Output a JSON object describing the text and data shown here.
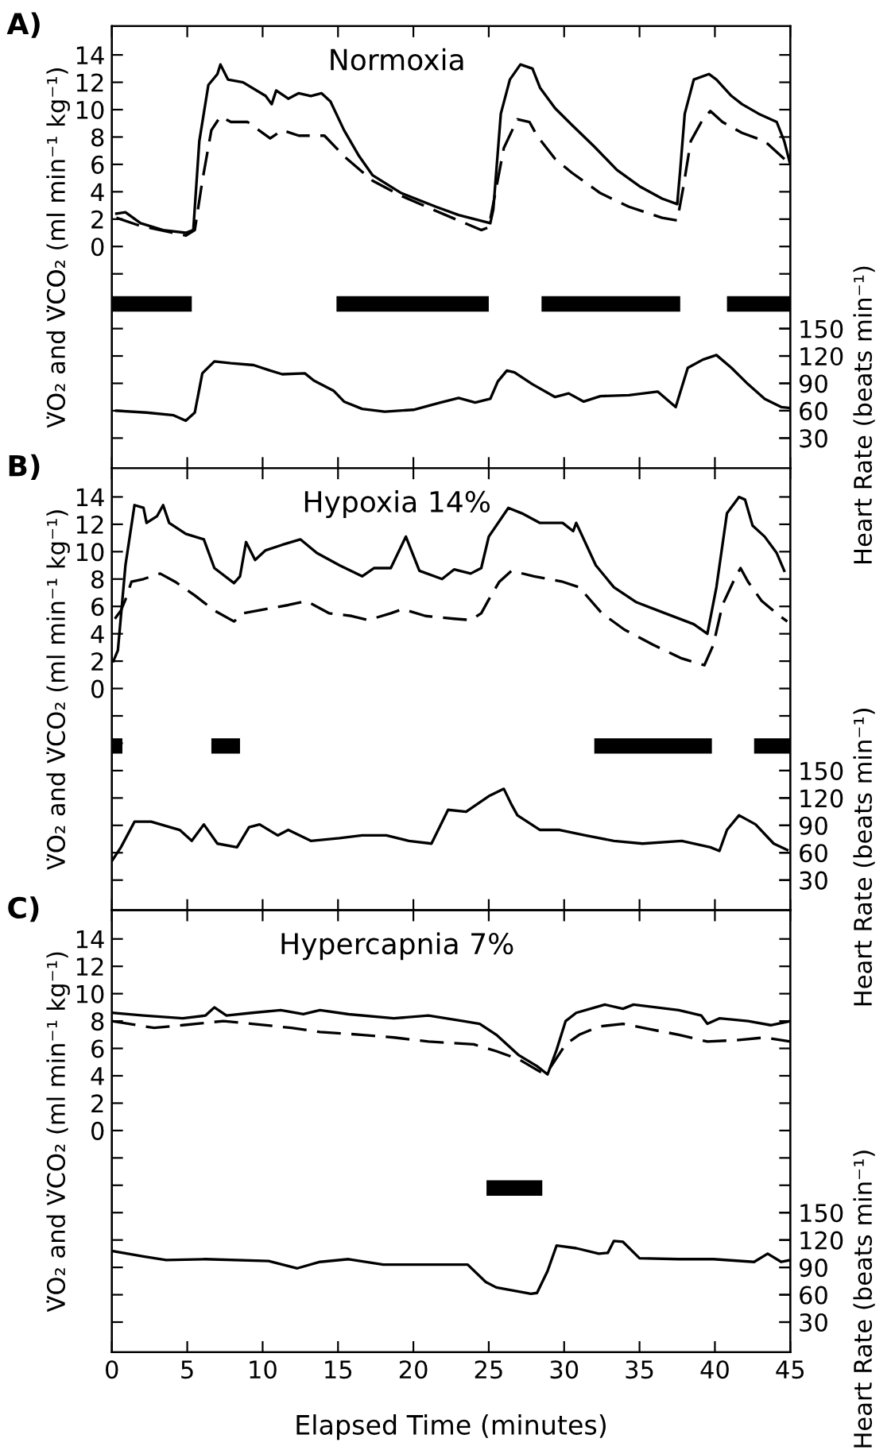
{
  "chart_data": [
    {
      "type": "line",
      "title": "Normoxia",
      "annotations": [
        "A)"
      ],
      "ylabel": "V̇O₂ and V̇CO₂ (ml min⁻¹ kg⁻¹)",
      "y2label": "Heart Rate (beats min⁻¹)",
      "tick_labels": "y",
      "xlim": [
        0,
        45
      ],
      "xticks": [
        0,
        5,
        10,
        15,
        20,
        25,
        30,
        35,
        40,
        45
      ],
      "ylim": [
        -16.2,
        16.1
      ],
      "yticks": [
        {
          "value": -14,
          "label": null
        },
        {
          "value": -12,
          "label": null
        },
        {
          "value": -10,
          "label": null
        },
        {
          "value": -8,
          "label": null
        },
        {
          "value": -6,
          "label": null
        },
        {
          "value": -4,
          "label": null
        },
        {
          "value": -2,
          "label": null
        },
        0,
        2,
        4,
        6,
        8,
        10,
        12,
        14
      ],
      "y2lim": [
        -3,
        481.5
      ],
      "y2ticks": [
        30,
        60,
        90,
        120,
        150
      ],
      "series": [
        {
          "type": "step",
          "color": "#000000",
          "line_style": "solid",
          "x": [
            0,
            5.3,
            null,
            14.9,
            25.0,
            null,
            28.5,
            37.7,
            null,
            40.8,
            45
          ],
          "values": [
            -4.2,
            -4.2,
            null,
            -4.2,
            -4.2,
            null,
            -4.2,
            -4.2,
            null,
            -4.2,
            -4.2
          ]
        },
        {
          "color": "#000000",
          "line_style": "solid",
          "x": [
            0.3,
            0.9,
            1.9,
            3.4,
            4.9,
            5.4,
            5.8,
            6.4,
            7.0,
            7.2,
            7.7,
            8.7,
            10.2,
            10.6,
            10.9,
            11.7,
            12.4,
            13.2,
            13.9,
            14.5,
            15.4,
            16.4,
            17.3,
            19.2,
            21.5,
            23.0,
            25.1,
            25.3,
            25.8,
            26.4,
            27.1,
            27.9,
            28.4,
            29.4,
            30.5,
            32.0,
            33.5,
            35.0,
            36.5,
            37.5,
            37.7,
            38.0,
            38.6,
            39.6,
            40.1,
            41.1,
            41.8,
            42.9,
            44.1,
            44.6,
            45
          ],
          "values": [
            2.4,
            2.5,
            1.7,
            1.2,
            1.0,
            1.2,
            7.7,
            11.8,
            12.6,
            13.3,
            12.2,
            12.0,
            11.0,
            10.4,
            11.4,
            10.8,
            11.2,
            11.0,
            11.2,
            10.6,
            8.5,
            6.6,
            5.2,
            3.9,
            2.9,
            2.3,
            1.7,
            2.7,
            9.7,
            12.2,
            13.3,
            13.0,
            11.6,
            10.1,
            8.9,
            7.3,
            5.6,
            4.4,
            3.5,
            3.1,
            5.6,
            9.7,
            12.2,
            12.6,
            12.2,
            11.0,
            10.4,
            9.7,
            9.1,
            7.7,
            6.0
          ]
        },
        {
          "color": "#000000",
          "line_style": "dashed",
          "x": [
            0.3,
            1.9,
            4.9,
            5.5,
            6.0,
            6.6,
            7.2,
            7.9,
            9.0,
            10.5,
            11.3,
            12.4,
            14.1,
            15.4,
            17.3,
            19.2,
            21.5,
            24.5,
            25.0,
            26.0,
            26.9,
            27.7,
            28.2,
            29.4,
            30.5,
            32.4,
            34.3,
            36.5,
            37.5,
            37.9,
            38.4,
            39.2,
            39.7,
            40.5,
            41.8,
            43.3,
            45
          ],
          "values": [
            2.1,
            1.5,
            0.8,
            1.2,
            4.8,
            8.5,
            9.5,
            9.1,
            9.1,
            7.9,
            8.5,
            8.1,
            8.1,
            6.6,
            4.8,
            3.7,
            2.6,
            1.2,
            1.4,
            7.2,
            9.3,
            9.1,
            8.1,
            6.4,
            5.4,
            3.9,
            2.9,
            2.1,
            1.9,
            4.3,
            7.7,
            9.3,
            9.9,
            9.1,
            8.3,
            7.7,
            6.0
          ]
        },
        {
          "color": "#000000",
          "line_style": "solid",
          "axis": "y2",
          "x": [
            0.3,
            2.3,
            4.1,
            4.9,
            5.5,
            6.0,
            6.8,
            7.9,
            9.4,
            10.5,
            11.3,
            12.8,
            13.4,
            14.7,
            15.4,
            16.6,
            18.1,
            20.0,
            21.8,
            23.0,
            24.1,
            25.1,
            25.6,
            26.2,
            26.7,
            27.9,
            29.4,
            30.3,
            31.3,
            32.4,
            34.3,
            36.2,
            37.4,
            38.2,
            39.2,
            40.1,
            41.1,
            42.2,
            43.3,
            44.4,
            45
          ],
          "values": [
            60,
            58,
            55,
            49,
            58,
            101,
            114,
            112,
            110,
            104,
            100,
            101,
            93,
            82,
            70,
            62,
            59,
            61,
            69,
            74,
            69,
            73,
            92,
            104,
            102,
            89,
            75,
            79,
            70,
            76,
            77,
            81,
            64,
            107,
            116,
            121,
            107,
            89,
            73,
            64,
            63
          ]
        }
      ]
    },
    {
      "type": "line",
      "title": "Hypoxia 14%",
      "annotations": [
        "B)"
      ],
      "ylabel": "V̇O₂ and V̇CO₂ (ml min⁻¹ kg⁻¹)",
      "y2label": "Heart Rate (beats min⁻¹)",
      "tick_labels": "y",
      "xlim": [
        0,
        45
      ],
      "xticks": [
        0,
        5,
        10,
        15,
        20,
        25,
        30,
        35,
        40,
        45
      ],
      "ylim": [
        -16.2,
        16.1
      ],
      "yticks": [
        {
          "value": -14,
          "label": null
        },
        {
          "value": -12,
          "label": null
        },
        {
          "value": -10,
          "label": null
        },
        {
          "value": -8,
          "label": null
        },
        {
          "value": -6,
          "label": null
        },
        {
          "value": -4,
          "label": null
        },
        {
          "value": -2,
          "label": null
        },
        0,
        2,
        4,
        6,
        8,
        10,
        12,
        14
      ],
      "y2lim": [
        -3,
        481.5
      ],
      "y2ticks": [
        30,
        60,
        90,
        120,
        150
      ],
      "series": [
        {
          "type": "step",
          "color": "#000000",
          "line_style": "solid",
          "x": [
            0,
            0.7,
            null,
            6.6,
            8.5,
            null,
            32.0,
            39.8,
            null,
            42.6,
            45
          ],
          "values": [
            -4.2,
            -4.2,
            null,
            -4.2,
            -4.2,
            null,
            -4.2,
            -4.2,
            null,
            -4.2,
            -4.2
          ]
        },
        {
          "color": "#000000",
          "line_style": "solid",
          "x": [
            0.1,
            0.4,
            0.9,
            1.5,
            2.1,
            2.3,
            3.0,
            3.4,
            3.8,
            4.9,
            6.1,
            6.8,
            8.1,
            8.5,
            8.9,
            9.5,
            10.2,
            11.3,
            12.5,
            13.6,
            15.1,
            16.6,
            17.4,
            18.5,
            19.5,
            20.4,
            21.9,
            22.7,
            23.8,
            24.5,
            25.0,
            26.3,
            27.2,
            28.4,
            29.9,
            30.6,
            30.8,
            32.1,
            33.3,
            34.8,
            36.7,
            38.6,
            39.5,
            40.1,
            40.8,
            41.6,
            42.0,
            42.5,
            43.3,
            44.1,
            44.6
          ],
          "values": [
            2.0,
            2.8,
            9.0,
            13.4,
            13.2,
            12.1,
            12.6,
            13.4,
            12.1,
            11.3,
            10.9,
            8.8,
            7.7,
            8.2,
            10.7,
            9.4,
            10.1,
            10.5,
            10.9,
            9.9,
            9.0,
            8.2,
            8.8,
            8.8,
            11.1,
            8.6,
            8.0,
            8.7,
            8.4,
            8.8,
            11.1,
            13.2,
            12.8,
            12.1,
            12.1,
            11.5,
            12.1,
            9.0,
            7.4,
            6.3,
            5.5,
            4.7,
            4.0,
            7.4,
            12.8,
            14.0,
            13.8,
            11.9,
            11.1,
            9.9,
            8.6
          ]
        },
        {
          "color": "#000000",
          "line_style": "dashed",
          "x": [
            0.2,
            0.6,
            0.9,
            1.3,
            2.1,
            3.2,
            4.2,
            5.5,
            6.8,
            8.1,
            8.7,
            10.2,
            11.7,
            12.9,
            14.4,
            15.9,
            17.0,
            18.5,
            19.3,
            20.8,
            22.7,
            23.8,
            24.5,
            25.0,
            25.7,
            26.5,
            28.0,
            29.9,
            31.0,
            32.5,
            34.0,
            35.9,
            37.8,
            39.3,
            39.9,
            40.5,
            41.3,
            41.7,
            42.2,
            43.1,
            44.3,
            44.8
          ],
          "values": [
            5.1,
            5.7,
            6.5,
            7.8,
            8.0,
            8.4,
            7.8,
            6.8,
            5.7,
            4.9,
            5.5,
            5.8,
            6.1,
            6.4,
            5.5,
            5.3,
            5.0,
            5.5,
            5.8,
            5.3,
            5.1,
            5.0,
            5.5,
            6.5,
            7.8,
            8.6,
            8.2,
            7.8,
            7.4,
            5.5,
            4.3,
            3.2,
            2.2,
            1.7,
            3.2,
            6.1,
            8.0,
            8.8,
            7.8,
            6.4,
            5.3,
            4.9
          ]
        },
        {
          "color": "#000000",
          "line_style": "solid",
          "axis": "y2",
          "x": [
            0,
            0.6,
            1.5,
            2.6,
            4.5,
            5.3,
            6.1,
            7.0,
            8.3,
            9.1,
            9.8,
            11.0,
            11.7,
            13.2,
            15.1,
            16.6,
            18.2,
            19.7,
            21.2,
            22.3,
            23.5,
            25.0,
            26.0,
            26.5,
            26.9,
            28.4,
            29.7,
            31.4,
            33.3,
            35.2,
            37.8,
            39.7,
            40.3,
            40.8,
            41.6,
            42.7,
            43.9,
            44.8
          ],
          "values": [
            51,
            66,
            94,
            94,
            85,
            73,
            91,
            70,
            66,
            88,
            91,
            79,
            85,
            73,
            76,
            79,
            79,
            73,
            70,
            107,
            105,
            122,
            130,
            113,
            101,
            85,
            85,
            79,
            73,
            70,
            73,
            66,
            62,
            85,
            101,
            91,
            70,
            63
          ]
        }
      ]
    },
    {
      "type": "line",
      "title": "Hypercapnia 7%",
      "annotations": [
        "C)"
      ],
      "xlabel": "Elapsed Time (minutes)",
      "ylabel": "V̇O₂ and V̇CO₂ (ml min⁻¹ kg⁻¹)",
      "y2label": "Heart Rate (beats min⁻¹)",
      "xlim": [
        0,
        45
      ],
      "xticks": [
        0,
        5,
        10,
        15,
        20,
        25,
        30,
        35,
        40,
        45
      ],
      "ylim": [
        -16.2,
        16.1
      ],
      "yticks": [
        {
          "value": -14,
          "label": null
        },
        {
          "value": -12,
          "label": null
        },
        {
          "value": -10,
          "label": null
        },
        {
          "value": -8,
          "label": null
        },
        {
          "value": -6,
          "label": null
        },
        {
          "value": -4,
          "label": null
        },
        {
          "value": -2,
          "label": null
        },
        0,
        2,
        4,
        6,
        8,
        10,
        12,
        14
      ],
      "y2lim": [
        -3,
        481.5
      ],
      "y2ticks": [
        30,
        60,
        90,
        120,
        150
      ],
      "series": [
        {
          "type": "step",
          "color": "#000000",
          "line_style": "solid",
          "x": [
            24.85,
            28.55
          ],
          "values": [
            -4.2,
            -4.2
          ]
        },
        {
          "color": "#000000",
          "line_style": "solid",
          "x": [
            0,
            2.1,
            4.7,
            6.2,
            6.8,
            7.6,
            9.3,
            11.2,
            12.7,
            13.8,
            15.7,
            18.7,
            21.0,
            23.3,
            24.4,
            25.5,
            27.0,
            28.2,
            28.9,
            29.5,
            30.1,
            30.8,
            32.7,
            33.9,
            34.6,
            37.6,
            39.1,
            39.5,
            40.3,
            42.2,
            43.7,
            45.0
          ],
          "values": [
            8.6,
            8.4,
            8.2,
            8.4,
            9.0,
            8.4,
            8.6,
            8.8,
            8.5,
            8.8,
            8.5,
            8.2,
            8.4,
            8.0,
            7.8,
            7.0,
            5.5,
            4.7,
            4.1,
            5.9,
            8.0,
            8.6,
            9.2,
            8.9,
            9.2,
            8.8,
            8.4,
            7.8,
            8.2,
            8.0,
            7.7,
            8.0
          ]
        },
        {
          "color": "#000000",
          "line_style": "dashed",
          "x": [
            0,
            2.8,
            4.7,
            7.4,
            9.3,
            11.9,
            13.8,
            16.5,
            18.7,
            21.0,
            24.0,
            25.5,
            27.0,
            28.4,
            28.9,
            29.5,
            30.1,
            31.0,
            32.3,
            33.9,
            35.7,
            37.6,
            39.5,
            41.4,
            43.3,
            45.0
          ],
          "values": [
            8.0,
            7.5,
            7.7,
            8.0,
            7.8,
            7.5,
            7.2,
            7.0,
            6.8,
            6.5,
            6.3,
            5.8,
            5.2,
            4.3,
            4.3,
            5.3,
            6.3,
            7.0,
            7.6,
            7.8,
            7.4,
            7.0,
            6.5,
            6.6,
            6.8,
            6.5
          ]
        },
        {
          "color": "#000000",
          "line_style": "solid",
          "axis": "y2",
          "x": [
            0,
            2.1,
            3.6,
            6.2,
            10.4,
            12.3,
            13.8,
            15.7,
            18.0,
            21.0,
            23.6,
            24.8,
            25.5,
            27.8,
            28.2,
            28.9,
            29.5,
            30.8,
            32.3,
            32.9,
            33.3,
            33.9,
            35.0,
            37.6,
            39.9,
            42.6,
            43.5,
            44.4,
            45.0
          ],
          "values": [
            108,
            102,
            98,
            99,
            97,
            89,
            96,
            99,
            93,
            93,
            93,
            74,
            68,
            61,
            62,
            86,
            114,
            111,
            105,
            106,
            119,
            118,
            100,
            99,
            99,
            96,
            105,
            96,
            98
          ]
        }
      ]
    }
  ]
}
